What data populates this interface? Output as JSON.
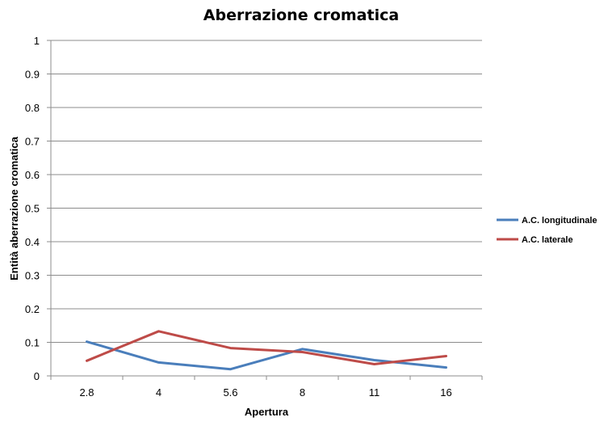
{
  "chart_data": {
    "type": "line",
    "title": "Aberrazione cromatica",
    "xlabel": "Apertura",
    "ylabel": "Entità aberrazione cromatica",
    "categories": [
      "2.8",
      "4",
      "5.6",
      "8",
      "11",
      "16"
    ],
    "ylim": [
      0,
      1
    ],
    "yticks": [
      "0",
      "0.1",
      "0.2",
      "0.3",
      "0.4",
      "0.5",
      "0.6",
      "0.7",
      "0.8",
      "0.9",
      "1"
    ],
    "grid": true,
    "legend_position": "right",
    "series": [
      {
        "name": "A.C. longitudinale",
        "color": "#4a7ebb",
        "values": [
          0.102,
          0.04,
          0.02,
          0.08,
          0.047,
          0.025
        ]
      },
      {
        "name": "A.C. laterale",
        "color": "#be4b48",
        "values": [
          0.045,
          0.133,
          0.083,
          0.071,
          0.035,
          0.059
        ]
      }
    ]
  }
}
